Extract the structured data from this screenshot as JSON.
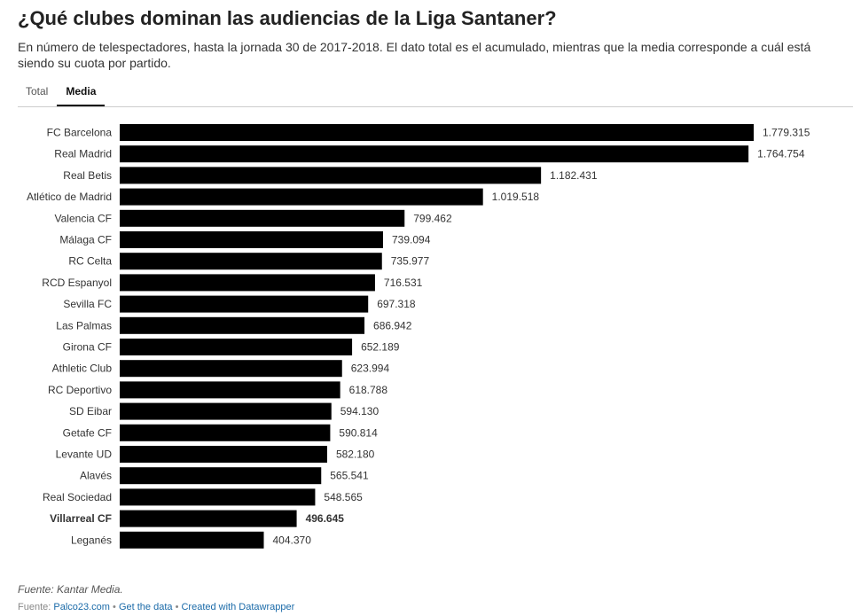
{
  "header": {
    "title": "¿Qué clubes dominan las audiencias de la Liga Santaner?",
    "subtitle": "En número de telespectadores, hasta la jornada 30 de 2017-2018. El dato total es el acumulado, mientras que la media corresponde a cuál está siendo su cuota por partido."
  },
  "tabs": [
    {
      "label": "Total",
      "active": false
    },
    {
      "label": "Media",
      "active": true
    }
  ],
  "chart_data": {
    "type": "bar",
    "orientation": "horizontal",
    "categories": [
      "FC Barcelona",
      "Real Madrid",
      "Real Betis",
      "Atlético de Madrid",
      "Valencia CF",
      "Málaga CF",
      "RC Celta",
      "RCD Espanyol",
      "Sevilla FC",
      "Las Palmas",
      "Girona CF",
      "Athletic Club",
      "RC Deportivo",
      "SD Eibar",
      "Getafe CF",
      "Levante UD",
      "Alavés",
      "Real Sociedad",
      "Villarreal CF",
      "Leganés"
    ],
    "values": [
      1779315,
      1764754,
      1182431,
      1019518,
      799462,
      739094,
      735977,
      716531,
      697318,
      686942,
      652189,
      623994,
      618788,
      594130,
      590814,
      582180,
      565541,
      548565,
      496645,
      404370
    ],
    "labels": [
      "1.779.315",
      "1.764.754",
      "1.182.431",
      "1.019.518",
      "799.462",
      "739.094",
      "735.977",
      "716.531",
      "697.318",
      "686.942",
      "652.189",
      "623.994",
      "618.788",
      "594.130",
      "590.814",
      "582.180",
      "565.541",
      "548.565",
      "496.645",
      "404.370"
    ],
    "highlighted": "Villarreal CF",
    "bar_color": "#000000",
    "xlim": [
      0,
      1779315
    ],
    "grid": false,
    "legend": "none"
  },
  "footer": {
    "note": "Fuente: Kantar Media.",
    "source_prefix": "Fuente:",
    "source_link": "Palco23.com",
    "separator": "•",
    "get_data": "Get the data",
    "created_with": "Created with Datawrapper"
  },
  "colors": {
    "text": "#333333",
    "link": "#1a6aa8",
    "bar": "#000000"
  }
}
